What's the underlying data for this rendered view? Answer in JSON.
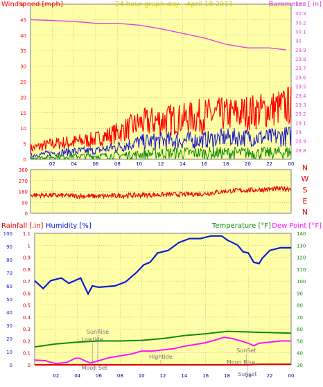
{
  "page_title": "24 hour graph day - April 18 2013",
  "colors": {
    "background": "#ffffff",
    "plot_bg": "#ffffa8",
    "wind_speed": "#ff0000",
    "wind_avg": "#1414c8",
    "wind_low": "#0a8a0a",
    "barometer": "#e040e0",
    "direction": "#ee0000",
    "humidity": "#0a1ed2",
    "temperature": "#0e8a0e",
    "dew_point": "#ff10ff",
    "rainfall": "#dd0000",
    "grid": "#a0a0a0"
  },
  "chart_data": [
    {
      "type": "line",
      "name": "wind-barometer",
      "title": "24 hour graph day - April 18 2013",
      "left_axis_label": "Windspeed [mph]",
      "right_axis_label": "Barometer [ in]",
      "left_ylim": [
        0,
        50
      ],
      "left_ticks": [
        "0",
        "5",
        "10",
        "15",
        "20",
        "25",
        "30",
        "35",
        "40",
        "45",
        "50"
      ],
      "right_ylim": [
        28.7,
        30.4
      ],
      "right_ticks": [
        "28.8",
        "28.9",
        "29",
        "29.1",
        "29.2",
        "29.3",
        "29.4",
        "29.5",
        "29.6",
        "29.7",
        "29.8",
        "29.9",
        "30",
        "30.1",
        "30.2",
        "30.3",
        "30.4"
      ],
      "x_ticks": [
        "02",
        "04",
        "06",
        "08",
        "10",
        "12",
        "14",
        "16",
        "18",
        "20",
        "22",
        "00"
      ],
      "hours": [
        0,
        2,
        4,
        6,
        8,
        10,
        12,
        14,
        16,
        18,
        20,
        22,
        24
      ],
      "gust_peak": [
        5,
        7,
        8,
        9,
        12,
        16,
        18,
        18,
        20,
        20,
        21,
        22,
        24
      ],
      "gust_base": [
        2,
        3,
        3,
        4,
        5,
        7,
        7,
        8,
        8,
        9,
        9,
        10,
        11
      ],
      "avg_peak": [
        2,
        3,
        4,
        4,
        6,
        8,
        9,
        9,
        9,
        10,
        10,
        10,
        11
      ],
      "avg_base": [
        0.5,
        1,
        1,
        1.5,
        2,
        3,
        3,
        3,
        3.5,
        4,
        4,
        4,
        4
      ],
      "low_peak": [
        1,
        1.5,
        2,
        2,
        2.5,
        3,
        4,
        4,
        4,
        4,
        4,
        4,
        4.5
      ],
      "barometer_hours": [
        0,
        2,
        4,
        6,
        8,
        10,
        12,
        14,
        16,
        18,
        20,
        22,
        23.5
      ],
      "barometer_values": [
        30.23,
        30.22,
        30.21,
        30.19,
        30.19,
        30.17,
        30.13,
        30.08,
        30.03,
        29.96,
        29.92,
        29.92,
        29.9
      ]
    },
    {
      "type": "line",
      "name": "wind-direction",
      "y_ticks": [
        "0",
        "90",
        "180",
        "270",
        "360"
      ],
      "ylim": [
        0,
        360
      ],
      "compass_labels": [
        "N",
        "W",
        "S",
        "E",
        "N"
      ],
      "x_ticks": [
        "02",
        "04",
        "06",
        "08",
        "10",
        "12",
        "14",
        "16",
        "18",
        "20",
        "22",
        "00"
      ],
      "hours": [
        0,
        2,
        4,
        6,
        8,
        10,
        12,
        14,
        16,
        18,
        20,
        22,
        24
      ],
      "values": [
        150,
        148,
        143,
        140,
        145,
        150,
        153,
        155,
        160,
        183,
        190,
        198,
        205
      ]
    },
    {
      "type": "line",
      "name": "humidity-temperature",
      "labels": {
        "rainfall": "Rainfall [.in]",
        "humidity": "Humidity [%]",
        "temperature": "Temperature [°F]",
        "dew_point": "Dew Point [°F]"
      },
      "humidity_ylim": [
        0,
        100
      ],
      "humidity_ticks": [
        "0",
        "10",
        "20",
        "30",
        "40",
        "50",
        "60",
        "70",
        "80",
        "90",
        "100"
      ],
      "rain_ylim": [
        0,
        1.1
      ],
      "rain_ticks": [
        "0",
        "0.1",
        "0.2",
        "0.3",
        "0.4",
        "0.5",
        "0.6",
        "0.7",
        "0.8",
        "0.9",
        "1",
        "1.1"
      ],
      "temp_ylim": [
        30,
        140
      ],
      "temp_ticks": [
        "30",
        "40",
        "50",
        "60",
        "70",
        "80",
        "90",
        "100",
        "110",
        "120",
        "130",
        "140"
      ],
      "x_ticks": [
        "02",
        "04",
        "06",
        "08",
        "10",
        "12",
        "14",
        "16",
        "18",
        "20",
        "22",
        "00"
      ],
      "humidity_hours": [
        0,
        0.8,
        1.5,
        2.5,
        3.2,
        4.3,
        5,
        5.4,
        6,
        7.5,
        8.5,
        9.5,
        10.2,
        10.8,
        11.5,
        12.5,
        13.5,
        14.5,
        15.5,
        16.5,
        17.5,
        18,
        18.5,
        19,
        19.5,
        20,
        20.5,
        21,
        21.3,
        22,
        23,
        24
      ],
      "humidity_values": [
        64,
        58,
        64,
        66,
        62,
        66,
        54,
        60,
        59,
        60,
        63,
        70,
        76,
        78,
        85,
        87,
        93,
        96,
        96,
        98,
        98,
        95,
        93,
        91,
        86,
        85,
        78,
        77,
        81,
        87,
        89,
        89
      ],
      "temperature_hours": [
        0,
        2,
        4,
        6,
        8,
        10,
        12,
        14,
        16,
        18,
        20,
        22,
        24
      ],
      "temperature_values": [
        45,
        47.5,
        49,
        50,
        50,
        50.5,
        52,
        54.5,
        56,
        58,
        57.5,
        57,
        56.5
      ],
      "dew_point_hours": [
        0,
        1,
        2,
        3,
        3.8,
        4.2,
        4.8,
        5.2,
        6,
        7,
        8,
        9,
        10,
        11,
        12,
        13,
        14,
        15,
        16,
        17,
        17.7,
        18.5,
        19.5,
        20,
        20.5,
        21,
        22,
        23,
        24
      ],
      "dew_point_values": [
        34,
        33.5,
        31,
        32,
        35.5,
        35.5,
        33,
        31.5,
        33.5,
        36,
        37.5,
        39,
        41.5,
        41.5,
        42.5,
        43.5,
        45.5,
        47,
        48.5,
        51,
        53,
        52,
        49.5,
        48,
        46,
        48,
        49,
        50,
        50
      ],
      "rain_hours": [
        0,
        20,
        21,
        22,
        23,
        24
      ],
      "rain_values": [
        0,
        0,
        0.005,
        0.005,
        0.005,
        0.005
      ],
      "annotations": [
        {
          "label": "SunRise",
          "hour": 5.9
        },
        {
          "label": "Lowtide",
          "hour": 5.4
        },
        {
          "label": "Moon Set",
          "hour": 5.6
        },
        {
          "label": "Hightide",
          "hour": 11.8
        },
        {
          "label": "SunSet",
          "hour": 19.8
        },
        {
          "label": "Moon Rise",
          "hour": 19.3
        },
        {
          "label": "Sunset",
          "hour": 19.9
        }
      ]
    }
  ]
}
